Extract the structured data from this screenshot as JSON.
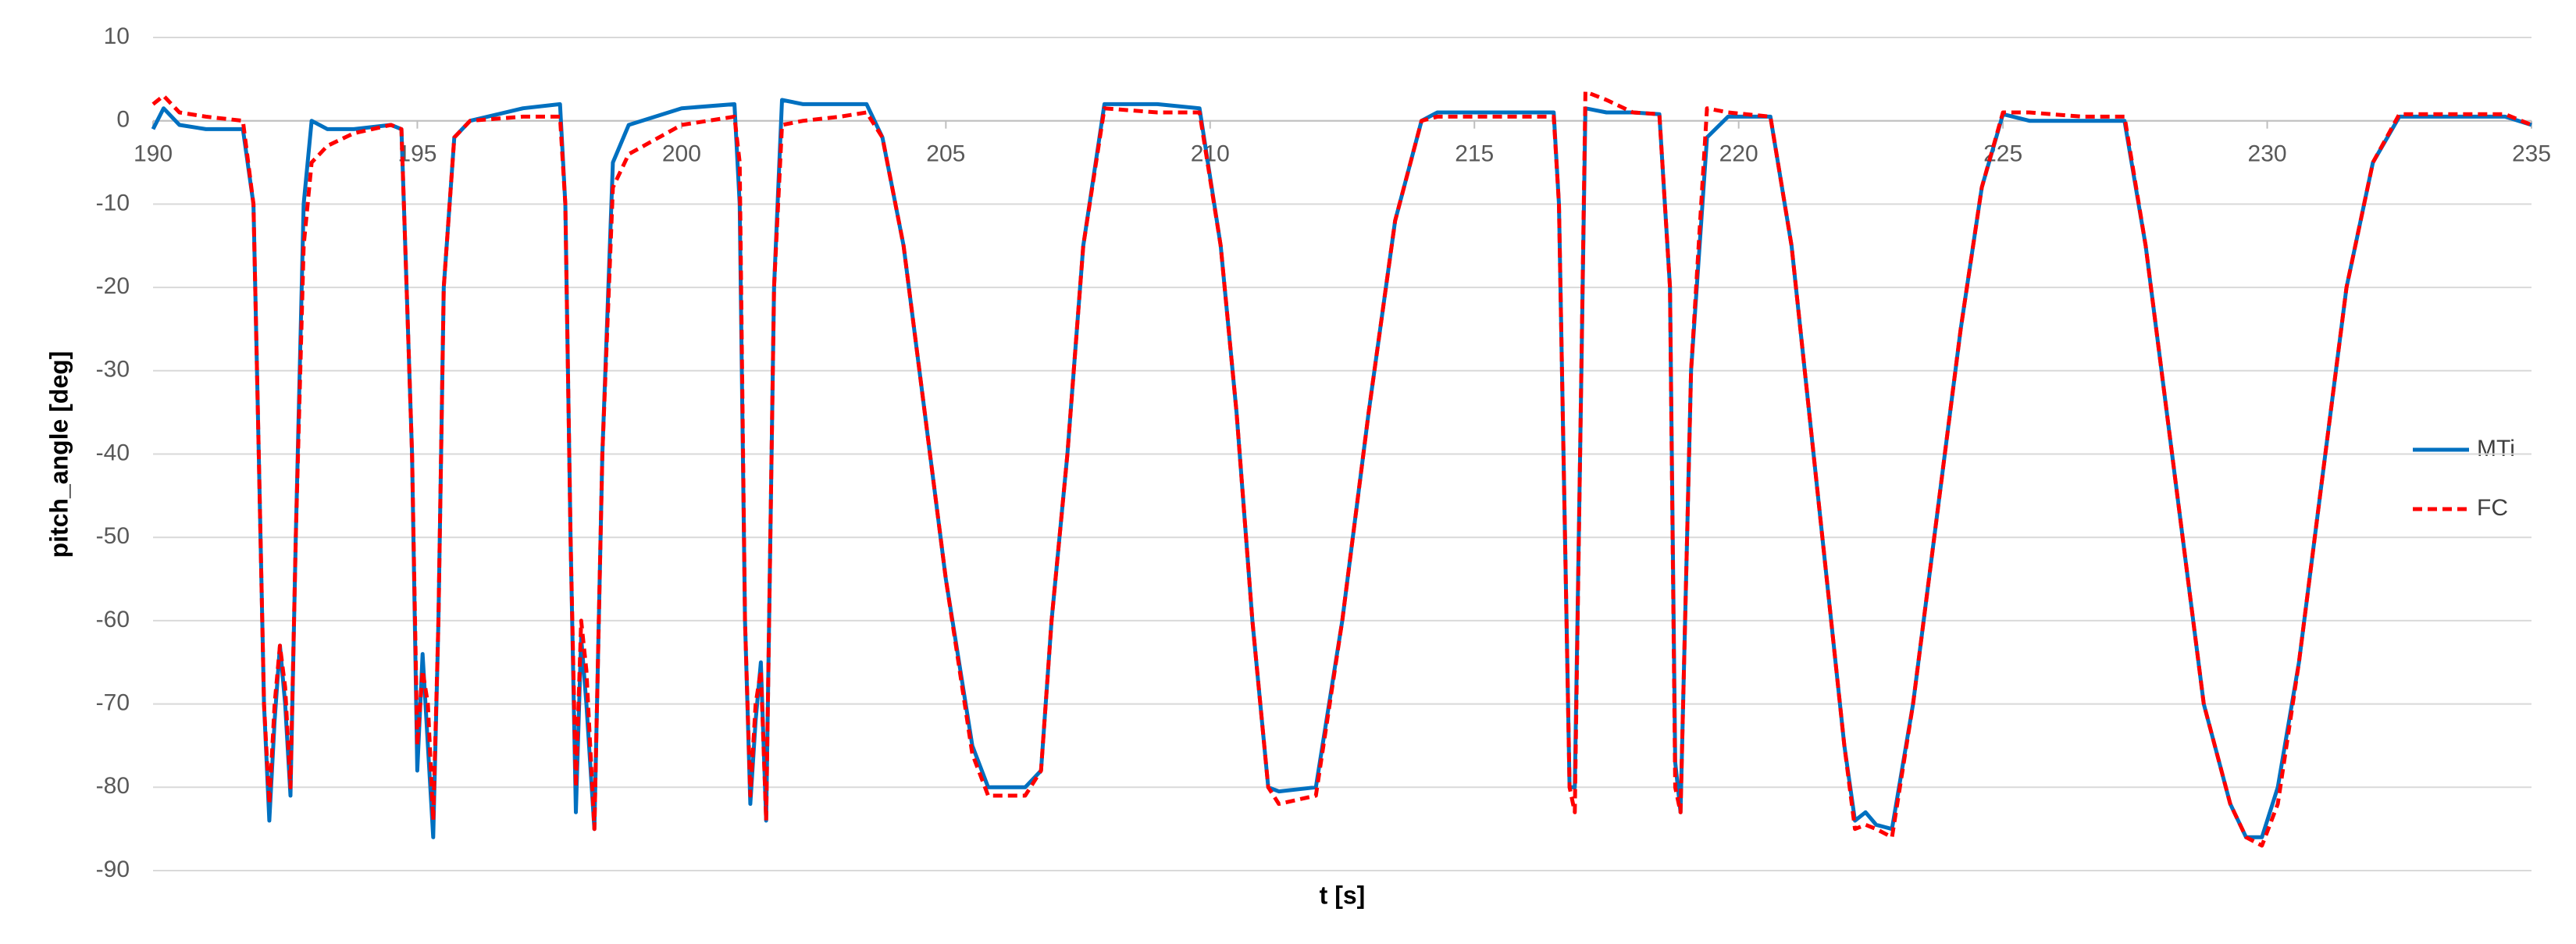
{
  "chart_data": {
    "type": "line",
    "x_label": "t [s]",
    "y_label": "pitch_angle [deg]",
    "xlim": [
      190,
      235
    ],
    "xticks": [
      190,
      195,
      200,
      205,
      210,
      215,
      220,
      225,
      230,
      235
    ],
    "ylim": [
      -90,
      10
    ],
    "yticks": [
      -90,
      -80,
      -70,
      -60,
      -50,
      -40,
      -30,
      -20,
      -10,
      0,
      10
    ],
    "grid": true,
    "legend": "right",
    "x": [
      190.0,
      190.2,
      190.5,
      191.0,
      191.7,
      191.9,
      192.0,
      192.1,
      192.2,
      192.3,
      192.4,
      192.5,
      192.6,
      192.7,
      192.85,
      193.0,
      193.3,
      193.8,
      194.5,
      194.7,
      194.9,
      195.0,
      195.1,
      195.2,
      195.3,
      195.4,
      195.5,
      195.7,
      196.0,
      197.0,
      197.7,
      197.8,
      197.9,
      198.0,
      198.1,
      198.2,
      198.35,
      198.5,
      198.7,
      199.0,
      200.0,
      201.0,
      201.1,
      201.2,
      201.3,
      201.4,
      201.5,
      201.6,
      201.75,
      201.9,
      202.3,
      203.0,
      203.5,
      203.8,
      204.2,
      204.5,
      205.0,
      205.5,
      205.8,
      206.5,
      206.8,
      207.0,
      207.3,
      207.6,
      208.0,
      209.0,
      209.8,
      210.2,
      210.5,
      210.8,
      211.1,
      211.3,
      212.0,
      212.5,
      213.0,
      213.5,
      214.0,
      214.3,
      216.5,
      216.6,
      216.8,
      216.9,
      217.0,
      217.1,
      217.5,
      218.0,
      218.5,
      218.7,
      218.8,
      218.9,
      219.1,
      219.4,
      219.8,
      220.6,
      221.0,
      221.5,
      222.0,
      222.2,
      222.4,
      222.6,
      222.9,
      223.3,
      223.8,
      224.2,
      224.6,
      225.0,
      225.5,
      226.5,
      227.3,
      227.7,
      228.2,
      228.8,
      229.3,
      229.6,
      229.9,
      230.2,
      230.6,
      231.0,
      231.5,
      232.0,
      232.5,
      234.5,
      235.0
    ],
    "series": [
      {
        "name": "MTi",
        "color": "#0070C0",
        "dash": false,
        "values": [
          -1,
          1.5,
          -0.5,
          -1,
          -1,
          -10,
          -40,
          -70,
          -84,
          -72,
          -63,
          -70,
          -81,
          -50,
          -10,
          0,
          -1,
          -1,
          -0.5,
          -1,
          -40,
          -78,
          -64,
          -75,
          -86,
          -60,
          -20,
          -2,
          0,
          1.5,
          2,
          -10,
          -50,
          -83,
          -62,
          -70,
          -85,
          -40,
          -5,
          -0.5,
          1.5,
          2,
          -10,
          -60,
          -82,
          -72,
          -65,
          -84,
          -20,
          2.5,
          2,
          2,
          2,
          -2,
          -15,
          -30,
          -55,
          -75,
          -80,
          -80,
          -78,
          -60,
          -40,
          -15,
          2,
          2,
          1.5,
          -15,
          -35,
          -60,
          -80,
          -80.5,
          -80,
          -60,
          -35,
          -12,
          0,
          1,
          1,
          -10,
          -80,
          -80,
          -40,
          1.5,
          1,
          1,
          0.8,
          -20,
          -77,
          -83,
          -30,
          -2,
          0.5,
          0.5,
          -15,
          -45,
          -75,
          -84,
          -83,
          -84.5,
          -85,
          -70,
          -45,
          -25,
          -8,
          0.8,
          0,
          0,
          0,
          -15,
          -40,
          -70,
          -82,
          -86,
          -86,
          -80,
          -65,
          -45,
          -20,
          -5,
          0.5,
          0.5,
          -0.5
        ]
      },
      {
        "name": "FC",
        "color": "#FF0000",
        "dash": true,
        "values": [
          2,
          3,
          1,
          0.5,
          0,
          -10,
          -40,
          -70,
          -82,
          -70,
          -63,
          -68,
          -80,
          -50,
          -15,
          -5,
          -3,
          -1.5,
          -0.5,
          -1,
          -40,
          -75,
          -66,
          -70,
          -84,
          -60,
          -20,
          -2,
          0,
          0.5,
          0.5,
          -10,
          -50,
          -80,
          -60,
          -66,
          -85,
          -40,
          -8,
          -4,
          -0.5,
          0.5,
          -5,
          -60,
          -81,
          -70,
          -66,
          -84,
          -20,
          -0.5,
          0,
          0.5,
          1,
          -2,
          -15,
          -30,
          -55,
          -76,
          -81,
          -81,
          -78,
          -60,
          -40,
          -15,
          1.5,
          1,
          1,
          -15,
          -35,
          -60,
          -80,
          -82,
          -81,
          -60,
          -35,
          -12,
          0,
          0.5,
          0.5,
          -10,
          -80,
          -83,
          -40,
          3.5,
          2.5,
          1,
          0.8,
          -20,
          -80,
          -83,
          -30,
          1.5,
          1,
          0.5,
          -15,
          -45,
          -75,
          -85,
          -84.5,
          -85,
          -86,
          -70,
          -45,
          -25,
          -8,
          1,
          1,
          0.5,
          0.5,
          -15,
          -40,
          -70,
          -82,
          -86,
          -87,
          -82,
          -65,
          -45,
          -20,
          -5,
          0.8,
          0.8,
          -0.5
        ]
      }
    ]
  }
}
